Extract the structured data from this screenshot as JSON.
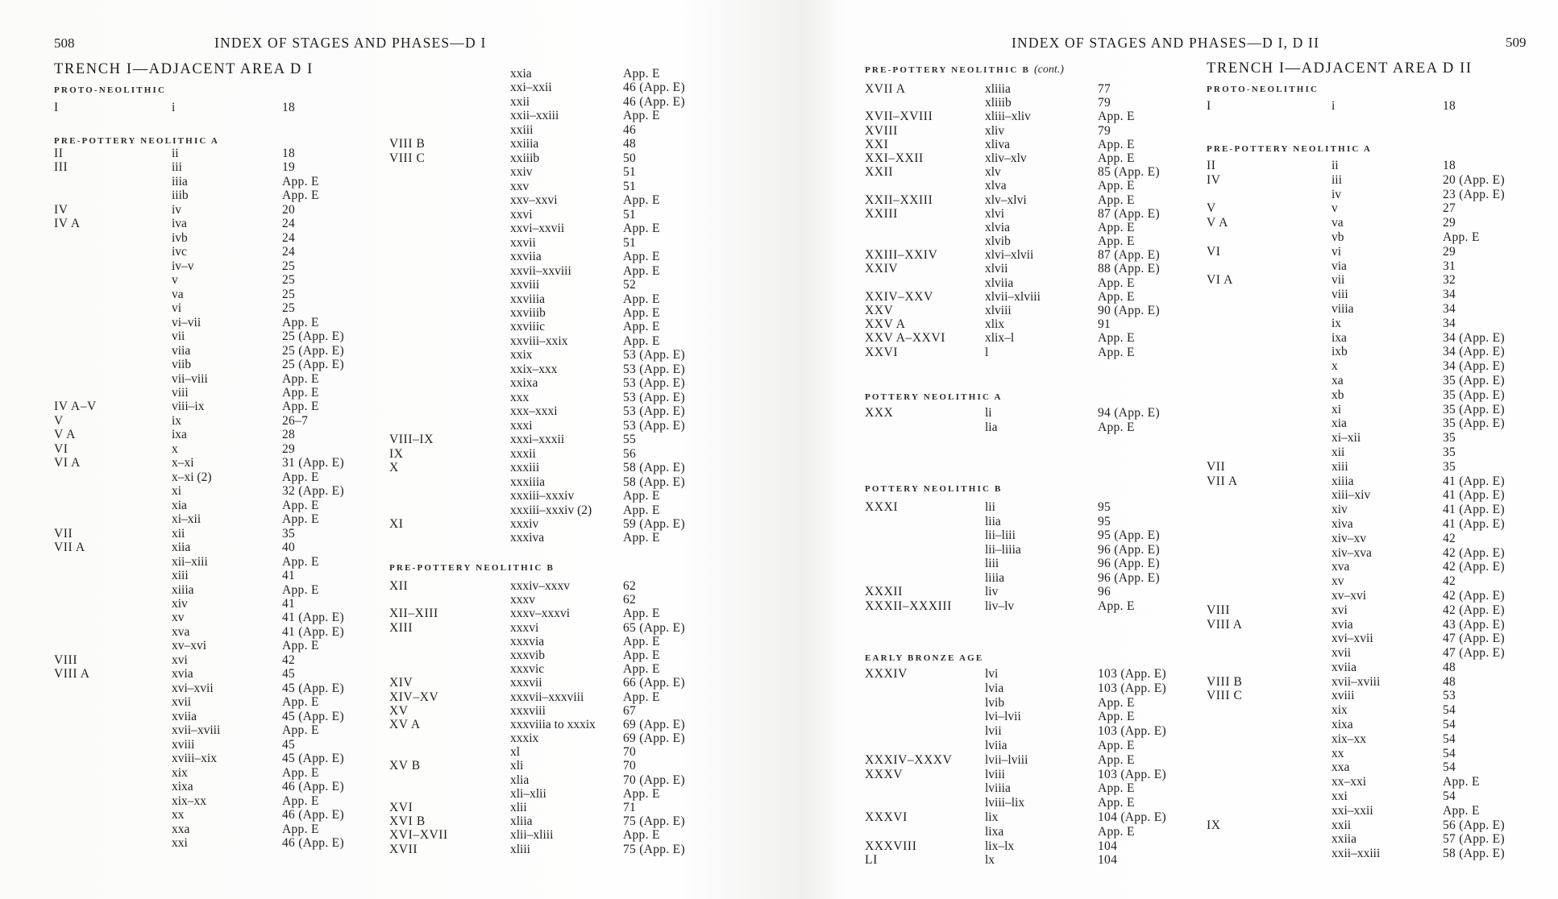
{
  "left_page": {
    "page_number": "508",
    "running_head": "INDEX OF STAGES AND PHASES—D I",
    "trench_title": "TRENCH I—ADJACENT AREA D I",
    "sections": [
      {
        "heading": "PROTO-NEOLITHIC",
        "rows": [
          [
            "I",
            "i",
            "18"
          ]
        ]
      },
      {
        "heading": "PRE-POTTERY NEOLITHIC A",
        "rows": [
          [
            "II",
            "ii",
            "18"
          ],
          [
            "III",
            "iii",
            "19"
          ],
          [
            "",
            "iiia",
            "App. E"
          ],
          [
            "",
            "iiib",
            "App. E"
          ],
          [
            "IV",
            "iv",
            "20"
          ],
          [
            "IV A",
            "iva",
            "24"
          ],
          [
            "",
            "ivb",
            "24"
          ],
          [
            "",
            "ivc",
            "24"
          ],
          [
            "",
            "iv–v",
            "25"
          ],
          [
            "",
            "v",
            "25"
          ],
          [
            "",
            "va",
            "25"
          ],
          [
            "",
            "vi",
            "25"
          ],
          [
            "",
            "vi–vii",
            "App. E"
          ],
          [
            "",
            "vii",
            "25 (App. E)"
          ],
          [
            "",
            "viia",
            "25 (App. E)"
          ],
          [
            "",
            "viib",
            "25 (App. E)"
          ],
          [
            "",
            "vii–viii",
            "App. E"
          ],
          [
            "",
            "viii",
            "App. E"
          ],
          [
            "IV A–V",
            "viii–ix",
            "App. E"
          ],
          [
            "V",
            "ix",
            "26–7"
          ],
          [
            "V A",
            "ixa",
            "28"
          ],
          [
            "VI",
            "x",
            "29"
          ],
          [
            "VI A",
            "x–xi",
            "31 (App. E)"
          ],
          [
            "",
            "x–xi (2)",
            "App. E"
          ],
          [
            "",
            "xi",
            "32 (App. E)"
          ],
          [
            "",
            "xia",
            "App. E"
          ],
          [
            "",
            "xi–xii",
            "App. E"
          ],
          [
            "VII",
            "xii",
            "35"
          ],
          [
            "VII A",
            "xiia",
            "40"
          ],
          [
            "",
            "xii–xiii",
            "App. E"
          ],
          [
            "",
            "xiii",
            "41"
          ],
          [
            "",
            "xiiia",
            "App. E"
          ],
          [
            "",
            "xiv",
            "41"
          ],
          [
            "",
            "xv",
            "41 (App. E)"
          ],
          [
            "",
            "xva",
            "41 (App. E)"
          ],
          [
            "",
            "xv–xvi",
            "App. E"
          ],
          [
            "VIII",
            "xvi",
            "42"
          ],
          [
            "VIII A",
            "xvia",
            "45"
          ],
          [
            "",
            "xvi–xvii",
            "45 (App. E)"
          ],
          [
            "",
            "xvii",
            "App. E"
          ],
          [
            "",
            "xviia",
            "45 (App. E)"
          ],
          [
            "",
            "xvii–xviii",
            "App. E"
          ],
          [
            "",
            "xviii",
            "45"
          ],
          [
            "",
            "xviii–xix",
            "45 (App. E)"
          ],
          [
            "",
            "xix",
            "App. E"
          ],
          [
            "",
            "xixa",
            "46 (App. E)"
          ],
          [
            "",
            "xix–xx",
            "App. E"
          ],
          [
            "",
            "xx",
            "46 (App. E)"
          ],
          [
            "",
            "xxa",
            "App. E"
          ],
          [
            "",
            "xxi",
            "46 (App. E)"
          ]
        ]
      },
      {
        "heading": "",
        "rows": [
          [
            "",
            "xxia",
            "App. E"
          ],
          [
            "",
            "xxi–xxii",
            "46 (App. E)"
          ],
          [
            "",
            "xxii",
            "46 (App. E)"
          ],
          [
            "",
            "xxii–xxiii",
            "App. E"
          ],
          [
            "",
            "xxiii",
            "46"
          ],
          [
            "VIII B",
            "xxiiia",
            "48"
          ],
          [
            "VIII C",
            "xxiiib",
            "50"
          ],
          [
            "",
            "xxiv",
            "51"
          ],
          [
            "",
            "xxv",
            "51"
          ],
          [
            "",
            "xxv–xxvi",
            "App. E"
          ],
          [
            "",
            "xxvi",
            "51"
          ],
          [
            "",
            "xxvi–xxvii",
            "App. E"
          ],
          [
            "",
            "xxvii",
            "51"
          ],
          [
            "",
            "xxviia",
            "App. E"
          ],
          [
            "",
            "xxvii–xxviii",
            "App. E"
          ],
          [
            "",
            "xxviii",
            "52"
          ],
          [
            "",
            "xxviiia",
            "App. E"
          ],
          [
            "",
            "xxviiib",
            "App. E"
          ],
          [
            "",
            "xxviiic",
            "App. E"
          ],
          [
            "",
            "xxviii–xxix",
            "App. E"
          ],
          [
            "",
            "xxix",
            "53 (App. E)"
          ],
          [
            "",
            "xxix–xxx",
            "53 (App. E)"
          ],
          [
            "",
            "xxixa",
            "53 (App. E)"
          ],
          [
            "",
            "xxx",
            "53 (App. E)"
          ],
          [
            "",
            "xxx–xxxi",
            "53 (App. E)"
          ],
          [
            "",
            "xxxi",
            "53 (App. E)"
          ],
          [
            "VIII–IX",
            "xxxi–xxxii",
            "55"
          ],
          [
            "IX",
            "xxxii",
            "56"
          ],
          [
            "X",
            "xxxiii",
            "58 (App. E)"
          ],
          [
            "",
            "xxxiiia",
            "58 (App. E)"
          ],
          [
            "",
            "xxxiii–xxxiv",
            "App. E"
          ],
          [
            "",
            "xxxiii–xxxiv (2)",
            "App. E"
          ],
          [
            "XI",
            "xxxiv",
            "59 (App. E)"
          ],
          [
            "",
            "xxxiva",
            "App. E"
          ]
        ]
      },
      {
        "heading": "PRE-POTTERY NEOLITHIC B",
        "rows": [
          [
            "XII",
            "xxxiv–xxxv",
            "62"
          ],
          [
            "",
            "xxxv",
            "62"
          ],
          [
            "XII–XIII",
            "xxxv–xxxvi",
            "App. E"
          ],
          [
            "XIII",
            "xxxvi",
            "65 (App. E)"
          ],
          [
            "",
            "xxxvia",
            "App. E"
          ],
          [
            "",
            "xxxvib",
            "App. E"
          ],
          [
            "",
            "xxxvic",
            "App. E"
          ],
          [
            "XIV",
            "xxxvii",
            "66 (App. E)"
          ],
          [
            "XIV–XV",
            "xxxvii–xxxviii",
            "App. E"
          ],
          [
            "XV",
            "xxxviii",
            "67"
          ],
          [
            "XV A",
            "xxxviiia to xxxix",
            "69 (App. E)"
          ],
          [
            "",
            "xxxix",
            "69 (App. E)"
          ],
          [
            "",
            "xl",
            "70"
          ],
          [
            "XV B",
            "xli",
            "70"
          ],
          [
            "",
            "xlia",
            "70 (App. E)"
          ],
          [
            "",
            "xli–xlii",
            "App. E"
          ],
          [
            "XVI",
            "xlii",
            "71"
          ],
          [
            "XVI B",
            "xliia",
            "75 (App. E)"
          ],
          [
            "XVI–XVII",
            "xlii–xliii",
            "App. E"
          ],
          [
            "XVII",
            "xliii",
            "75 (App. E)"
          ]
        ]
      }
    ]
  },
  "right_page": {
    "page_number": "509",
    "running_head": "INDEX OF STAGES AND PHASES—D I, D II",
    "trench_title": "TRENCH I—ADJACENT AREA D II",
    "sections": [
      {
        "heading": "PRE-POTTERY NEOLITHIC B",
        "heading_note": "(cont.)",
        "rows": [
          [
            "XVII A",
            "xliiia",
            "77"
          ],
          [
            "",
            "xliiib",
            "79"
          ],
          [
            "XVII–XVIII",
            "xliii–xliv",
            "App. E"
          ],
          [
            "XVIII",
            "xliv",
            "79"
          ],
          [
            "XXI",
            "xliva",
            "App. E"
          ],
          [
            "XXI–XXII",
            "xliv–xlv",
            "App. E"
          ],
          [
            "XXII",
            "xlv",
            "85 (App. E)"
          ],
          [
            "",
            "xlva",
            "App. E"
          ],
          [
            "XXII–XXIII",
            "xlv–xlvi",
            "App. E"
          ],
          [
            "XXIII",
            "xlvi",
            "87 (App. E)"
          ],
          [
            "",
            "xlvia",
            "App. E"
          ],
          [
            "",
            "xlvib",
            "App. E"
          ],
          [
            "XXIII–XXIV",
            "xlvi–xlvii",
            "87 (App. E)"
          ],
          [
            "XXIV",
            "xlvii",
            "88 (App. E)"
          ],
          [
            "",
            "xlviia",
            "App. E"
          ],
          [
            "XXIV–XXV",
            "xlvii–xlviii",
            "App. E"
          ],
          [
            "XXV",
            "xlviii",
            "90 (App. E)"
          ],
          [
            "XXV A",
            "xlix",
            "91"
          ],
          [
            "XXV A–XXVI",
            "xlix–l",
            "App. E"
          ],
          [
            "XXVI",
            "l",
            "App. E"
          ]
        ]
      },
      {
        "heading": "POTTERY NEOLITHIC A",
        "rows": [
          [
            "XXX",
            "li",
            "94 (App. E)"
          ],
          [
            "",
            "lia",
            "App. E"
          ]
        ]
      },
      {
        "heading": "POTTERY NEOLITHIC B",
        "rows": [
          [
            "XXXI",
            "lii",
            "95"
          ],
          [
            "",
            "liia",
            "95"
          ],
          [
            "",
            "lii–liii",
            "95 (App. E)"
          ],
          [
            "",
            "lii–liiia",
            "96 (App. E)"
          ],
          [
            "",
            "liii",
            "96 (App. E)"
          ],
          [
            "",
            "liiia",
            "96 (App. E)"
          ],
          [
            "XXXII",
            "liv",
            "96"
          ],
          [
            "XXXII–XXXIII",
            "liv–lv",
            "App. E"
          ]
        ]
      },
      {
        "heading": "EARLY BRONZE AGE",
        "rows": [
          [
            "XXXIV",
            "lvi",
            "103 (App. E)"
          ],
          [
            "",
            "lvia",
            "103 (App. E)"
          ],
          [
            "",
            "lvib",
            "App. E"
          ],
          [
            "",
            "lvi–lvii",
            "App. E"
          ],
          [
            "",
            "lvii",
            "103 (App. E)"
          ],
          [
            "",
            "lviia",
            "App. E"
          ],
          [
            "XXXIV–XXXV",
            "lvii–lviii",
            "App. E"
          ],
          [
            "XXXV",
            "lviii",
            "103 (App. E)"
          ],
          [
            "",
            "lviiia",
            "App. E"
          ],
          [
            "",
            "lviii–lix",
            "App. E"
          ],
          [
            "XXXVI",
            "lix",
            "104 (App. E)"
          ],
          [
            "",
            "lixa",
            "App. E"
          ],
          [
            "XXXVIII",
            "lix–lx",
            "104"
          ],
          [
            "LI",
            "lx",
            "104"
          ]
        ]
      },
      {
        "heading": "PROTO-NEOLITHIC",
        "rows": [
          [
            "I",
            "i",
            "18"
          ]
        ]
      },
      {
        "heading": "PRE-POTTERY NEOLITHIC A",
        "rows": [
          [
            "II",
            "ii",
            "18"
          ],
          [
            "IV",
            "iii",
            "20 (App. E)"
          ],
          [
            "",
            "iv",
            "23 (App. E)"
          ],
          [
            "V",
            "v",
            "27"
          ],
          [
            "V A",
            "va",
            "29"
          ],
          [
            "",
            "vb",
            "App. E"
          ],
          [
            "VI",
            "vi",
            "29"
          ],
          [
            "",
            "via",
            "31"
          ],
          [
            "VI A",
            "vii",
            "32"
          ],
          [
            "",
            "viii",
            "34"
          ],
          [
            "",
            "viiia",
            "34"
          ],
          [
            "",
            "ix",
            "34"
          ],
          [
            "",
            "ixa",
            "34 (App. E)"
          ],
          [
            "",
            "ixb",
            "34 (App. E)"
          ],
          [
            "",
            "x",
            "34 (App. E)"
          ],
          [
            "",
            "xa",
            "35 (App. E)"
          ],
          [
            "",
            "xb",
            "35 (App. E)"
          ],
          [
            "",
            "xi",
            "35 (App. E)"
          ],
          [
            "",
            "xia",
            "35 (App. E)"
          ],
          [
            "",
            "xi–xii",
            "35"
          ],
          [
            "",
            "xii",
            "35"
          ],
          [
            "VII",
            "xiii",
            "35"
          ],
          [
            "VII A",
            "xiiia",
            "41 (App. E)"
          ],
          [
            "",
            "xiii–xiv",
            "41 (App. E)"
          ],
          [
            "",
            "xiv",
            "41 (App. E)"
          ],
          [
            "",
            "xiva",
            "41 (App. E)"
          ],
          [
            "",
            "xiv–xv",
            "42"
          ],
          [
            "",
            "xiv–xva",
            "42 (App. E)"
          ],
          [
            "",
            "xva",
            "42 (App. E)"
          ],
          [
            "",
            "xv",
            "42"
          ],
          [
            "",
            "xv–xvi",
            "42 (App. E)"
          ],
          [
            "VIII",
            "xvi",
            "42 (App. E)"
          ],
          [
            "VIII A",
            "xvia",
            "43 (App. E)"
          ],
          [
            "",
            "xvi–xvii",
            "47 (App. E)"
          ],
          [
            "",
            "xvii",
            "47 (App. E)"
          ],
          [
            "",
            "xviia",
            "48"
          ],
          [
            "VIII B",
            "xvii–xviii",
            "48"
          ],
          [
            "VIII C",
            "xviii",
            "53"
          ],
          [
            "",
            "xix",
            "54"
          ],
          [
            "",
            "xixa",
            "54"
          ],
          [
            "",
            "xix–xx",
            "54"
          ],
          [
            "",
            "xx",
            "54"
          ],
          [
            "",
            "xxa",
            "54"
          ],
          [
            "",
            "xx–xxi",
            "App. E"
          ],
          [
            "",
            "xxi",
            "54"
          ],
          [
            "",
            "xxi–xxii",
            "App. E"
          ],
          [
            "IX",
            "xxii",
            "56 (App. E)"
          ],
          [
            "",
            "xxiia",
            "57 (App. E)"
          ],
          [
            "",
            "xxii–xxiii",
            "58 (App. E)"
          ]
        ]
      }
    ]
  }
}
